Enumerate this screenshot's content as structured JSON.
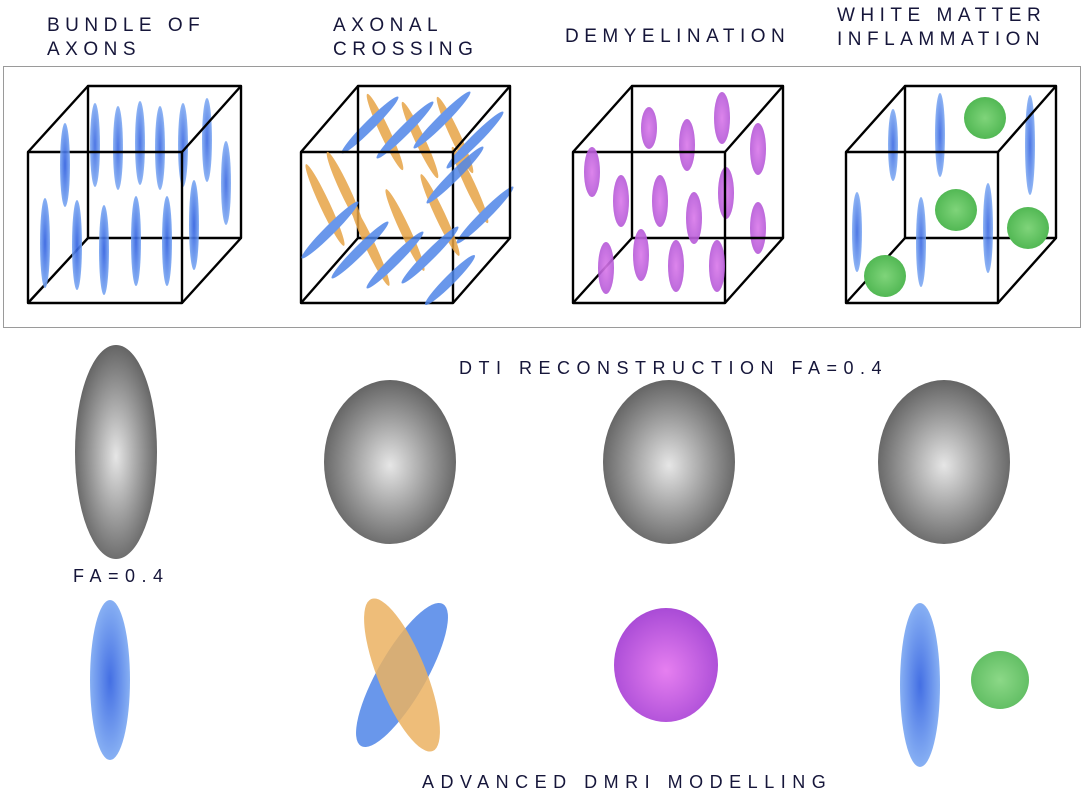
{
  "headings": {
    "bundle": "BUNDLE OF\nAXONS",
    "crossing": "AXONAL\nCROSSING",
    "demyelination": "DEMYELINATION",
    "inflammation": "WHITE MATTER\nINFLAMMATION"
  },
  "labels": {
    "dti": "DTI RECONSTRUCTION FA=0.4",
    "fa": "FA=0.4",
    "advanced": "ADVANCED DMRI MODELLING"
  },
  "colors": {
    "axon_blue": "#4f86e8",
    "crossing_orange": "#e7a446",
    "demyelination_purple": "#c25ad9",
    "inflammation_green": "#5fc45e",
    "tensor_gray": "#6a6a6a",
    "cube_edge": "#000000",
    "frame": "#9a9a9a"
  }
}
